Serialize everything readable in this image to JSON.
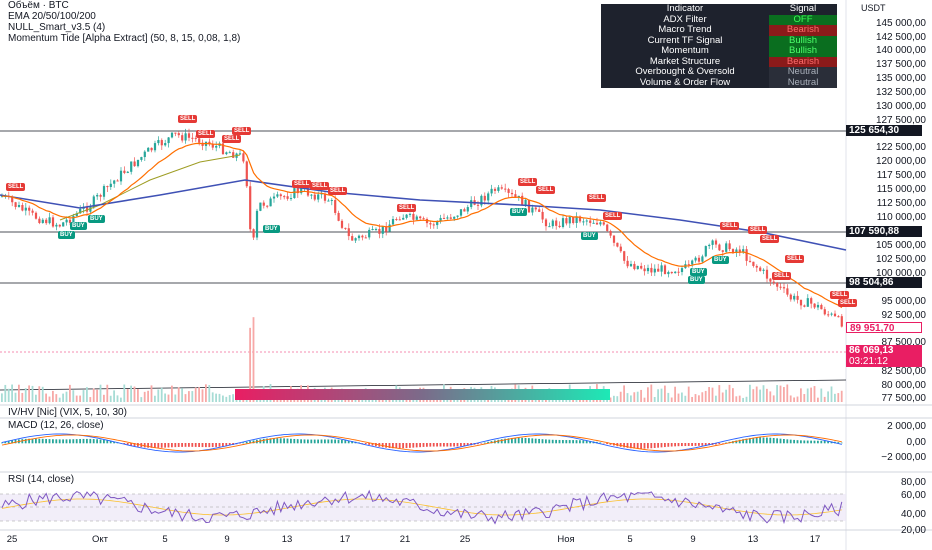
{
  "legend": {
    "volume": "Объём · BTC",
    "ema": "EMA 20/50/100/200",
    "null_smart": "NULL_Smart_v3.5 (4)",
    "momentum_tide": "Momentum Tide [Alpha Extract] (50, 8, 15, 0,08, 1,8)"
  },
  "currency": "USDT",
  "table": {
    "header": {
      "indicator": "Indicator",
      "signal": "Signal"
    },
    "rows": [
      {
        "name": "ADX Filter",
        "signal": "OFF",
        "status": "off"
      },
      {
        "name": "Macro Trend",
        "signal": "Bearish",
        "status": "bear"
      },
      {
        "name": "Current TF Signal",
        "signal": "Bullish",
        "status": "bull"
      },
      {
        "name": "Momentum",
        "signal": "Bullish",
        "status": "bull"
      },
      {
        "name": "Market Structure",
        "signal": "Bearish",
        "status": "bear"
      },
      {
        "name": "Overbought & Oversold",
        "signal": "Neutral",
        "status": "neu"
      },
      {
        "name": "Volume & Order Flow",
        "signal": "Neutral",
        "status": "neu"
      }
    ]
  },
  "price_axis": [
    "145 000,00",
    "142 500,00",
    "140 000,00",
    "137 500,00",
    "135 000,00",
    "132 500,00",
    "130 000,00",
    "127 500,00",
    "122 500,00",
    "120 000,00",
    "117 500,00",
    "115 000,00",
    "112 500,00",
    "110 000,00",
    "105 000,00",
    "102 500,00",
    "100 000,00",
    "95 000,00",
    "92 500,00",
    "87 500,00",
    "82 500,00",
    "80 000,00",
    "77 500,00"
  ],
  "price_tags": [
    {
      "label": "125 654,30",
      "bg": "#131722",
      "fg": "#ffffff"
    },
    {
      "label": "107 590,88",
      "bg": "#131722",
      "fg": "#ffffff"
    },
    {
      "label": "98 504,86",
      "bg": "#131722",
      "fg": "#ffffff"
    },
    {
      "label": "89 951,70",
      "bg": "#ffffff",
      "fg": "#e91e63"
    },
    {
      "label": "86 069,13",
      "bg": "#e91e63",
      "fg": "#ffffff"
    },
    {
      "label": "03:21:12",
      "bg": "#e91e63",
      "fg": "#ffffff"
    }
  ],
  "panes": {
    "ivhv": "IV/HV [Nic] (VIX, 5, 10, 30)",
    "macd": "MACD (12, 26, close)",
    "rsi": "RSI (14, close)"
  },
  "macd_axis": [
    "2 000,00",
    "0,00",
    "−2 000,00"
  ],
  "rsi_axis": [
    "80,00",
    "60,00",
    "40,00",
    "20,00"
  ],
  "dates": [
    "25",
    "Окт",
    "5",
    "9",
    "13",
    "17",
    "21",
    "25",
    "Ноя",
    "5",
    "9",
    "13",
    "17"
  ],
  "signals": {
    "sell": "SELL",
    "buy": "BUY"
  },
  "colors": {
    "bull_candle": "#26a69a",
    "bear_candle": "#ef5350",
    "ema_fast": "#ff6f00",
    "ema_slow": "#3f51b5",
    "ema_mid": "#9e9d24",
    "rsi": "#7e57c2",
    "macd": "#2962ff",
    "signal_line": "#ff6d00"
  }
}
